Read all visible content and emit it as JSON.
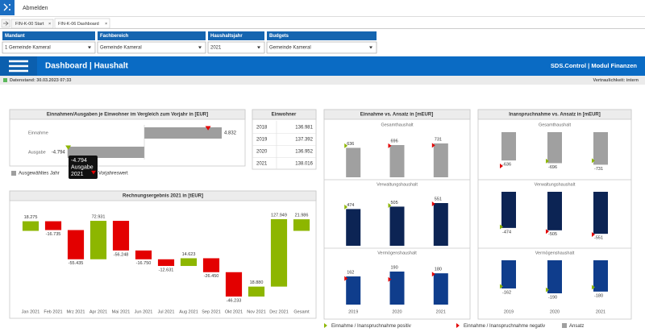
{
  "app": {
    "logout": "Abmelden"
  },
  "tabs": [
    "FIN-K-00 Start",
    "FIN-K-06 Dashboard"
  ],
  "filters": [
    {
      "label": "Mandant",
      "value": "1 Gemeinde Kameral"
    },
    {
      "label": "Fachbereich",
      "value": "Gemeinde Kameral"
    },
    {
      "label": "Haushaltsjahr",
      "value": "2021"
    },
    {
      "label": "Budgets",
      "value": "Gemeinde Kameral"
    }
  ],
  "header": {
    "title": "Dashboard | Haushalt",
    "module": "SDS.Control | Modul Finanzen"
  },
  "status": {
    "date": "Datenstand: 30.03.2023 07:33",
    "confidentiality": "Vertraulichkeit: intern"
  },
  "population": {
    "title": "Einwohner",
    "rows": [
      [
        "2018",
        "136.981"
      ],
      [
        "2019",
        "137.392"
      ],
      [
        "2020",
        "136.952"
      ],
      [
        "2021",
        "138.016"
      ]
    ]
  },
  "chart_data": [
    {
      "type": "hbar",
      "title": "Einnahmen/Ausgaben je Einwohner im Vergleich zum Vorjahr in [EUR]",
      "categories": [
        "Einnahme",
        "Ausgabe"
      ],
      "values": [
        4832,
        -4794
      ],
      "value_labels": [
        "4.832",
        "-4.794"
      ],
      "color": "#9e9e9e",
      "prior_values": [
        3980,
        -4750
      ],
      "prior_colors": [
        "#e30000",
        "#8db600"
      ],
      "tooltip": [
        "-4.794",
        "Ausgabe",
        "2021"
      ],
      "legend": [
        {
          "name": "Ausgewähltes Jahr",
          "color": "#9e9e9e"
        },
        {
          "name": "Vorjahreswert",
          "color": "#e30000"
        }
      ]
    },
    {
      "type": "waterfall",
      "title": "Rechnungsergebnis 2021 in [tEUR]",
      "categories": [
        "Jan 2021",
        "Feb 2021",
        "Mrz 2021",
        "Apr 2021",
        "Mai 2021",
        "Jun 2021",
        "Jul 2021",
        "Aug 2021",
        "Sep 2021",
        "Okt 2021",
        "Nov 2021",
        "Dez 2021",
        "Gesamt"
      ],
      "values": [
        18275,
        -16735,
        -55435,
        72931,
        -56248,
        -16750,
        -12631,
        14623,
        -26450,
        -46233,
        18880,
        127949,
        21986
      ],
      "value_labels": [
        "18.275",
        "-16.735",
        "-55.435",
        "72.931",
        "-56.248",
        "-16.750",
        "-12.631",
        "14.623",
        "-26.450",
        "-46.233",
        "18.880",
        "127.949",
        "21.986"
      ],
      "positive_color": "#8db600",
      "negative_color": "#e30000"
    },
    {
      "type": "bar_marker",
      "title": "Einnahme vs. Ansatz in [mEUR]",
      "categories": [
        "2019",
        "2020",
        "2021"
      ],
      "panels": [
        {
          "subtitle": "Gesamthaushalt",
          "color": "#a0a0a0",
          "values": [
            636,
            696,
            731
          ],
          "markers": [
            680,
            680,
            690
          ],
          "marker_colors": [
            "#8db600",
            "#e30000",
            "#e30000"
          ]
        },
        {
          "subtitle": "Verwaltungshaushalt",
          "color": "#0c2454",
          "values": [
            474,
            505,
            551
          ],
          "markers": [
            500,
            520,
            540
          ],
          "marker_colors": [
            "#8db600",
            "#8db600",
            "#e30000"
          ]
        },
        {
          "subtitle": "Vermögenshaushalt",
          "color": "#0f3d8c",
          "values": [
            162,
            190,
            180
          ],
          "markers": [
            150,
            145,
            175
          ],
          "marker_colors": [
            "#e30000",
            "#e30000",
            "#e30000"
          ]
        }
      ]
    },
    {
      "type": "bar_marker",
      "title": "Inanspruchnahme vs. Ansatz in [mEUR]",
      "categories": [
        "2019",
        "2020",
        "2021"
      ],
      "panels": [
        {
          "subtitle": "Gesamthaushalt",
          "color": "#a0a0a0",
          "values": [
            -636,
            -696,
            -731
          ],
          "markers": [
            -760,
            -650,
            -640
          ],
          "marker_colors": [
            "#e30000",
            "#8db600",
            "#8db600"
          ]
        },
        {
          "subtitle": "Verwaltungshaushalt",
          "color": "#0c2454",
          "values": [
            -474,
            -505,
            -551
          ],
          "markers": [
            -460,
            -520,
            -560
          ],
          "marker_colors": [
            "#8db600",
            "#e30000",
            "#e30000"
          ]
        },
        {
          "subtitle": "Vermögenshaushalt",
          "color": "#0f3d8c",
          "values": [
            -162,
            -190,
            -180
          ],
          "markers": [
            -150,
            -170,
            -155
          ],
          "marker_colors": [
            "#8db600",
            "#8db600",
            "#8db600"
          ]
        }
      ]
    }
  ],
  "legend": [
    {
      "label": "Einnahme / Inanspruchnahme positiv",
      "color": "#8db600"
    },
    {
      "label": "Einnahme / Inanspruchnahme negativ",
      "color": "#e30000"
    },
    {
      "label": "Ansatz",
      "color": "#a0a0a0"
    }
  ]
}
